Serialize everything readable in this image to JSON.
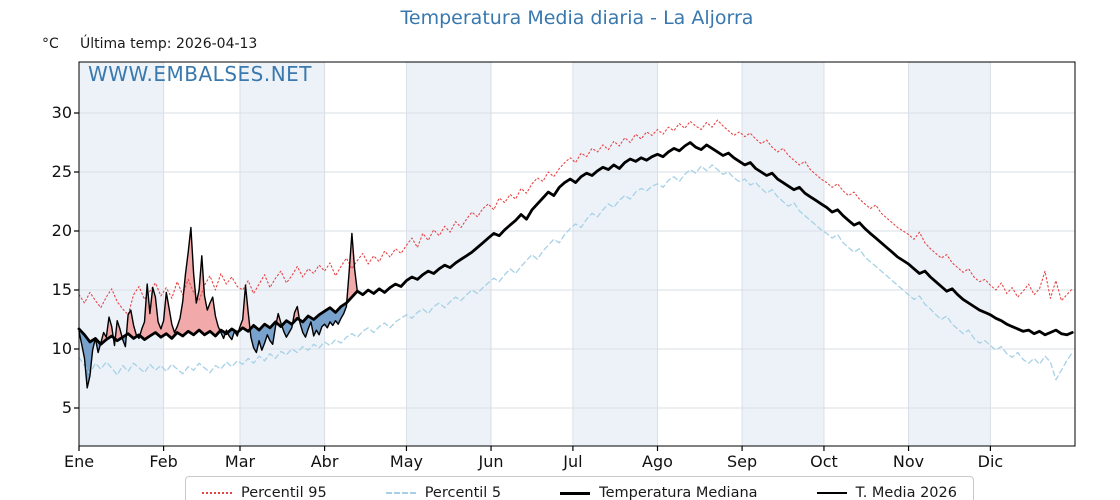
{
  "title": "Temperatura Media diaria - La Aljorra",
  "y_unit_label": "°C",
  "last_temp_label": "Última temp: 2026-04-13",
  "watermark": "WWW.EMBALSES.NET",
  "colors": {
    "title_blue": "#3878af",
    "watermark_blue": "#3a79ae",
    "p95_red": "#e64545",
    "p5_blue": "#a6d1e6",
    "line_black": "#000000",
    "fill_above": "#f2a9a9",
    "fill_below": "#78a2cb",
    "month_band": "#edf2f9",
    "grid": "#dadfe5"
  },
  "legend": {
    "items": [
      {
        "label": "Percentil 95"
      },
      {
        "label": "Percentil 5"
      },
      {
        "label": "Temperatura Mediana"
      },
      {
        "label": "T. Media 2026"
      }
    ]
  },
  "chart_data": {
    "type": "line",
    "title": "Temperatura Media diaria - La Aljorra",
    "ylabel": "°C",
    "yticks": [
      5,
      10,
      15,
      20,
      25,
      30
    ],
    "ylim": [
      1.8,
      34.3
    ],
    "grid": true,
    "legend_position": "bottom",
    "x_tick_labels": [
      "Ene",
      "Feb",
      "Mar",
      "Abr",
      "May",
      "Jun",
      "Jul",
      "Ago",
      "Sep",
      "Oct",
      "Nov",
      "Dic"
    ],
    "month_start_days": [
      1,
      32,
      60,
      91,
      121,
      152,
      182,
      213,
      244,
      274,
      305,
      335
    ],
    "days_in_year": 365,
    "shaded_months": [
      "Ene",
      "Mar",
      "May",
      "Jul",
      "Sep",
      "Nov"
    ],
    "series": [
      {
        "name": "Percentil 95",
        "style": "dotted",
        "color": "#e64545",
        "start_day": 1,
        "day_step": 2,
        "values": [
          14.6,
          13.9,
          14.8,
          14.1,
          13.5,
          14.4,
          15.1,
          14.0,
          13.4,
          12.9,
          14.6,
          15.3,
          14.2,
          14.9,
          15.6,
          14.5,
          15.2,
          14.3,
          15.7,
          14.6,
          15.9,
          14.8,
          14.1,
          15.4,
          16.2,
          15.0,
          16.4,
          15.5,
          16.1,
          15.3,
          15.0,
          15.8,
          14.7,
          15.5,
          16.3,
          15.2,
          16.0,
          16.6,
          15.6,
          16.2,
          17.0,
          16.1,
          16.8,
          16.4,
          17.1,
          16.6,
          17.3,
          16.2,
          17.0,
          17.7,
          16.8,
          17.5,
          18.1,
          17.2,
          17.9,
          17.4,
          18.3,
          17.8,
          18.5,
          18.1,
          18.8,
          19.4,
          18.6,
          19.8,
          19.2,
          20.1,
          19.6,
          20.4,
          19.9,
          20.8,
          20.3,
          21.0,
          21.6,
          21.2,
          21.9,
          22.3,
          21.8,
          22.8,
          22.4,
          23.1,
          22.7,
          23.6,
          23.2,
          24.0,
          24.5,
          24.2,
          25.0,
          24.6,
          25.3,
          25.8,
          26.2,
          25.8,
          26.6,
          26.3,
          27.0,
          26.7,
          27.3,
          26.9,
          27.6,
          27.2,
          27.9,
          27.5,
          28.2,
          27.8,
          28.4,
          28.1,
          28.6,
          28.2,
          28.8,
          28.5,
          29.1,
          28.7,
          29.3,
          28.9,
          28.6,
          29.2,
          28.8,
          29.4,
          28.9,
          28.5,
          28.1,
          28.4,
          28.0,
          28.3,
          27.8,
          27.4,
          27.7,
          27.1,
          26.7,
          27.0,
          26.4,
          26.0,
          25.6,
          25.9,
          25.2,
          24.8,
          24.4,
          24.1,
          23.7,
          24.0,
          23.4,
          23.0,
          23.3,
          22.7,
          22.3,
          21.9,
          22.2,
          21.5,
          21.1,
          20.7,
          20.3,
          20.0,
          19.7,
          19.3,
          19.9,
          19.0,
          18.5,
          18.1,
          17.7,
          18.0,
          17.3,
          16.9,
          16.5,
          16.8,
          16.1,
          15.7,
          15.9,
          15.4,
          15.0,
          15.6,
          14.7,
          15.2,
          14.4,
          14.9,
          15.5,
          14.6,
          15.1,
          16.6,
          14.3,
          15.8,
          14.1,
          14.6,
          15.1
        ]
      },
      {
        "name": "Percentil 5",
        "style": "dashed",
        "color": "#a6d1e6",
        "start_day": 1,
        "day_step": 2,
        "values": [
          9.3,
          8.6,
          7.9,
          8.8,
          8.3,
          8.9,
          8.4,
          7.8,
          8.6,
          8.1,
          8.8,
          8.4,
          8.0,
          8.7,
          8.2,
          8.6,
          8.1,
          8.7,
          8.3,
          7.9,
          8.5,
          8.2,
          8.8,
          8.4,
          8.0,
          8.6,
          8.3,
          8.9,
          8.5,
          9.0,
          8.7,
          9.2,
          8.8,
          9.4,
          9.0,
          9.6,
          9.2,
          9.8,
          9.5,
          10.0,
          9.7,
          10.2,
          9.9,
          10.4,
          10.1,
          10.6,
          10.3,
          10.8,
          10.5,
          11.0,
          11.3,
          11.0,
          11.5,
          11.8,
          11.4,
          11.9,
          12.2,
          11.8,
          12.3,
          12.6,
          12.9,
          12.6,
          13.1,
          13.4,
          13.0,
          13.6,
          13.9,
          13.5,
          14.0,
          14.4,
          14.1,
          14.6,
          15.0,
          14.7,
          15.2,
          15.6,
          16.0,
          15.7,
          16.3,
          16.8,
          16.4,
          17.0,
          17.5,
          18.0,
          17.6,
          18.3,
          18.8,
          19.3,
          19.0,
          19.7,
          20.2,
          20.6,
          20.3,
          21.0,
          21.5,
          21.2,
          21.8,
          22.3,
          22.0,
          22.6,
          23.0,
          22.7,
          23.3,
          23.6,
          23.4,
          23.8,
          24.0,
          23.7,
          24.3,
          24.6,
          24.2,
          24.8,
          25.2,
          24.9,
          25.5,
          25.1,
          25.6,
          25.2,
          24.8,
          25.0,
          24.5,
          24.2,
          24.4,
          23.9,
          24.1,
          23.6,
          23.2,
          23.5,
          22.9,
          22.5,
          22.1,
          22.4,
          21.7,
          21.3,
          20.9,
          20.5,
          20.1,
          19.8,
          19.4,
          19.7,
          19.0,
          18.6,
          18.2,
          18.5,
          17.8,
          17.4,
          17.0,
          16.6,
          16.2,
          15.8,
          15.4,
          15.0,
          14.6,
          14.2,
          14.5,
          13.8,
          13.4,
          12.9,
          12.5,
          12.8,
          12.1,
          11.7,
          11.3,
          11.6,
          10.9,
          10.5,
          10.7,
          10.3,
          9.9,
          10.2,
          9.6,
          9.3,
          9.7,
          9.1,
          8.8,
          9.2,
          8.7,
          9.4,
          8.9,
          7.4,
          8.2,
          9.0,
          9.7
        ]
      },
      {
        "name": "Temperatura Mediana",
        "style": "solid-thick",
        "color": "#000000",
        "start_day": 1,
        "day_step": 2,
        "values": [
          11.7,
          11.2,
          10.6,
          10.9,
          10.4,
          10.8,
          11.1,
          10.7,
          11.0,
          11.3,
          10.9,
          11.2,
          10.8,
          11.1,
          11.4,
          11.0,
          11.3,
          10.9,
          11.4,
          11.1,
          11.5,
          11.2,
          11.6,
          11.2,
          11.5,
          11.1,
          11.6,
          11.3,
          11.7,
          11.4,
          11.8,
          11.5,
          12.0,
          11.6,
          12.1,
          11.8,
          12.3,
          11.9,
          12.4,
          12.1,
          12.6,
          12.3,
          12.8,
          12.5,
          12.9,
          13.2,
          13.5,
          13.1,
          13.6,
          13.9,
          14.4,
          14.9,
          14.6,
          15.0,
          14.7,
          15.1,
          14.8,
          15.2,
          15.5,
          15.3,
          15.8,
          16.1,
          15.9,
          16.3,
          16.6,
          16.4,
          16.8,
          17.1,
          16.9,
          17.3,
          17.6,
          17.9,
          18.2,
          18.6,
          19.0,
          19.4,
          19.8,
          19.6,
          20.1,
          20.5,
          20.9,
          21.4,
          21.0,
          21.8,
          22.3,
          22.8,
          23.3,
          23.0,
          23.7,
          24.1,
          24.4,
          24.1,
          24.6,
          24.9,
          24.7,
          25.1,
          25.4,
          25.2,
          25.6,
          25.3,
          25.8,
          26.1,
          25.9,
          26.2,
          26.0,
          26.3,
          26.5,
          26.3,
          26.7,
          27.0,
          26.8,
          27.2,
          27.5,
          27.1,
          26.9,
          27.3,
          27.0,
          26.7,
          26.4,
          26.6,
          26.2,
          25.9,
          25.6,
          25.8,
          25.3,
          25.0,
          24.7,
          24.9,
          24.4,
          24.1,
          23.8,
          23.5,
          23.7,
          23.2,
          22.9,
          22.6,
          22.3,
          22.0,
          21.6,
          21.8,
          21.3,
          20.9,
          20.5,
          20.7,
          20.2,
          19.8,
          19.4,
          19.0,
          18.6,
          18.2,
          17.8,
          17.5,
          17.2,
          16.8,
          16.4,
          16.6,
          16.1,
          15.7,
          15.3,
          14.9,
          15.1,
          14.6,
          14.2,
          13.9,
          13.6,
          13.3,
          13.1,
          12.9,
          12.6,
          12.4,
          12.1,
          11.9,
          11.7,
          11.5,
          11.6,
          11.3,
          11.5,
          11.2,
          11.4,
          11.6,
          11.3,
          11.2,
          11.4
        ]
      },
      {
        "name": "T. Media 2026",
        "style": "solid-thin",
        "color": "#000000",
        "start_day": 1,
        "day_step": 1,
        "last_date": "2026-04-13",
        "values": [
          11.5,
          10.4,
          9.2,
          6.7,
          7.7,
          9.9,
          10.9,
          9.7,
          10.5,
          11.4,
          11.0,
          12.7,
          11.9,
          10.3,
          12.4,
          11.7,
          10.8,
          10.2,
          12.9,
          13.3,
          12.0,
          11.2,
          10.9,
          11.7,
          12.3,
          15.5,
          13.0,
          15.2,
          14.4,
          12.3,
          11.7,
          12.4,
          14.8,
          13.5,
          12.1,
          11.4,
          11.9,
          12.6,
          14.0,
          16.3,
          18.2,
          20.3,
          16.4,
          13.9,
          15.0,
          17.9,
          14.5,
          13.3,
          13.9,
          14.4,
          12.8,
          11.9,
          11.4,
          10.9,
          11.6,
          11.1,
          10.8,
          11.5,
          11.1,
          11.9,
          12.5,
          15.4,
          13.1,
          11.0,
          10.1,
          9.7,
          10.7,
          9.9,
          10.5,
          11.2,
          10.7,
          10.4,
          11.9,
          13.0,
          12.2,
          11.5,
          11.0,
          11.4,
          11.8,
          13.1,
          13.6,
          12.2,
          11.4,
          11.0,
          11.7,
          12.3,
          11.1,
          11.6,
          11.2,
          11.9,
          12.1,
          11.8,
          12.3,
          12.0,
          12.4,
          12.1,
          12.6,
          13.0,
          13.6,
          16.5,
          19.8,
          16.8,
          14.9
        ]
      }
    ],
    "fills": {
      "description": "T. Media 2026 vs Temperatura Mediana",
      "above_color": "#f2a9a9",
      "below_color": "#78a2cb"
    }
  }
}
